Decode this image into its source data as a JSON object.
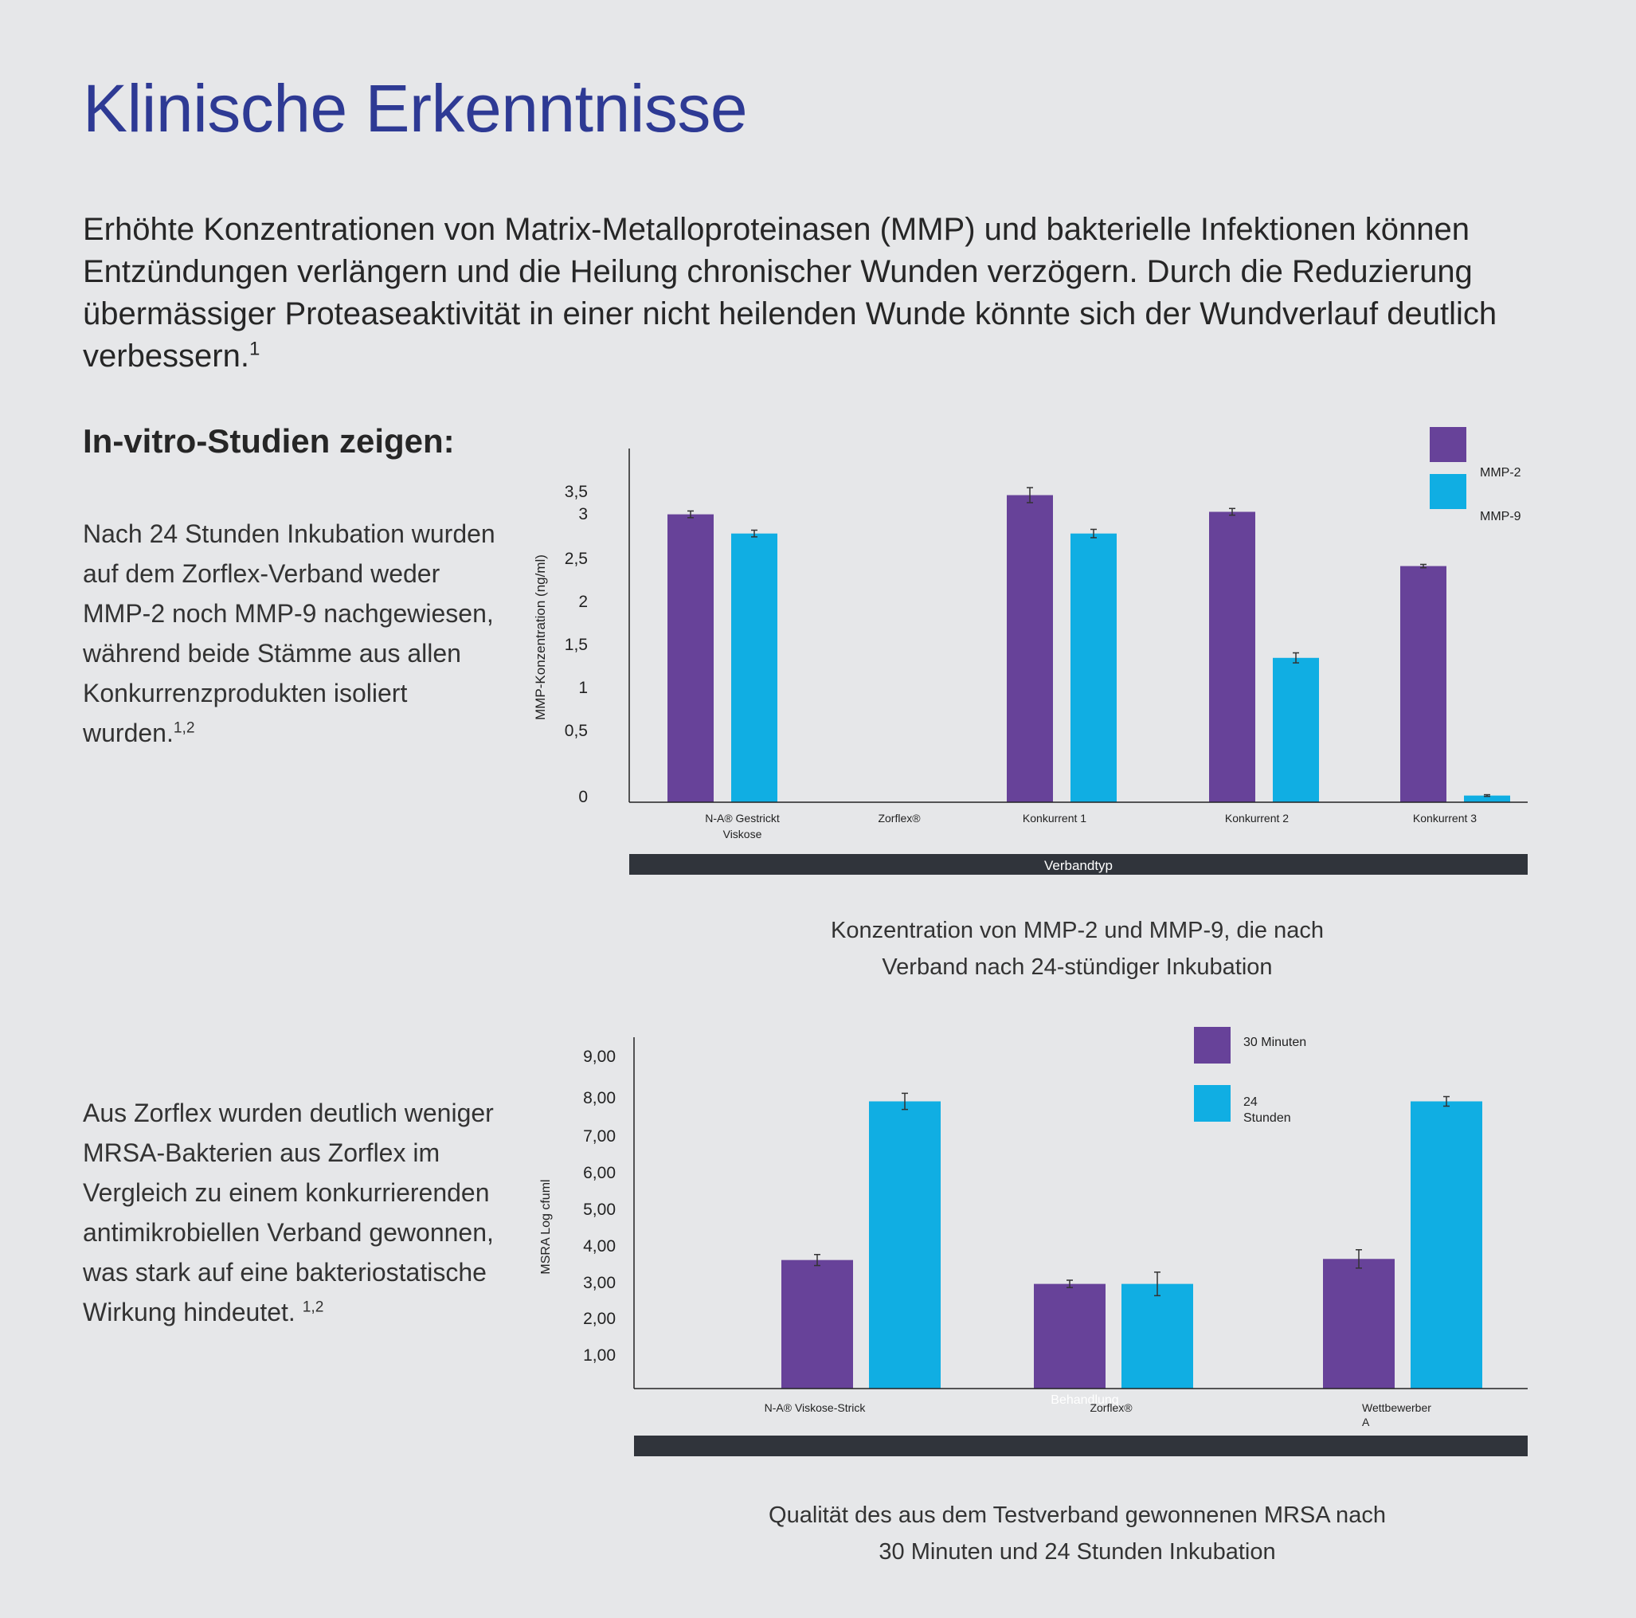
{
  "page": {
    "title": "Klinische Erkenntnisse",
    "intro": "Erhöhte Konzentrationen von Matrix-Metalloproteinasen (MMP) und bakterielle Infektionen können Entzündungen verlängern und die Heilung chronischer Wunden verzögern. Durch die Reduzierung übermässiger Proteaseaktivität in einer nicht heilenden Wunde könnte sich der Wundverlauf deutlich verbessern.",
    "intro_ref": "1",
    "subhead": "In-vitro-Studien zeigen:",
    "para1": "Nach 24 Stunden Inkubation wurden auf dem Zorflex-Verband weder MMP-2 noch MMP-9 nachgewiesen, während beide Stämme aus allen Konkurrenzprodukten isoliert wurden.",
    "para1_ref": "1,2",
    "para2": "Aus Zorflex wurden deutlich weniger MRSA-Bakterien aus Zorflex im Vergleich zu einem konkurrierenden antimikrobiellen Verband gewonnen, was stark auf eine bakteriostatische Wirkung hindeutet.",
    "para2_ref": "1,2",
    "caption1_line1": "Konzentration von MMP-2 und MMP-9, die nach",
    "caption1_line2": "Verband nach 24-stündiger Inkubation",
    "caption2_line1": "Qualität des aus dem Testverband gewonnenen MRSA nach",
    "caption2_line2": "30 Minuten und 24 Stunden Inkubation"
  },
  "colors": {
    "purple": "#674299",
    "cyan": "#10aee3",
    "axis_bar": "#30343b",
    "title": "#2e3a94"
  },
  "chart_data": [
    {
      "type": "bar",
      "ylabel": "MMP-Konzentration (ng/ml)",
      "xlabel": "Verbandtyp",
      "ylim": [
        0,
        4
      ],
      "yticks": [
        "3,5",
        "3",
        "2,5",
        "2",
        "1,5",
        "1",
        "0,5",
        "0"
      ],
      "categories": [
        "N-A® Gestrickt Viskose",
        "Zorflex®",
        "Konkurrent 1",
        "Konkurrent 2",
        "Konkurrent 3"
      ],
      "series": [
        {
          "name": "MMP-2",
          "values": [
            3.45,
            0,
            3.68,
            3.48,
            2.83
          ],
          "errors": [
            0.04,
            0,
            0.09,
            0.04,
            0.02
          ]
        },
        {
          "name": "MMP-9",
          "values": [
            3.22,
            0,
            3.22,
            1.73,
            0.08
          ],
          "errors": [
            0.04,
            0,
            0.05,
            0.06,
            0.01
          ]
        }
      ],
      "legend_position": "top-right"
    },
    {
      "type": "bar",
      "ylabel": "MSRA Log cfuml",
      "xlabel": "Behandlung",
      "ylim": [
        0.1,
        9.66
      ],
      "yticks": [
        "9,00",
        "8,00",
        "7,00",
        "6,00",
        "5,00",
        "4,00",
        "3,00",
        "2,00",
        "1,00"
      ],
      "categories": [
        "N-A® Viskose-Strick",
        "Zorflex®",
        "Wettbewerber A"
      ],
      "series": [
        {
          "name": "30 Minuten",
          "values": [
            3.6,
            2.95,
            3.63
          ],
          "errors": [
            0.15,
            0.1,
            0.25
          ]
        },
        {
          "name": "24 Stunden",
          "values": [
            7.92,
            2.95,
            7.92
          ],
          "errors": [
            0.22,
            0.32,
            0.13
          ]
        }
      ],
      "legend_position": "top-right"
    }
  ]
}
